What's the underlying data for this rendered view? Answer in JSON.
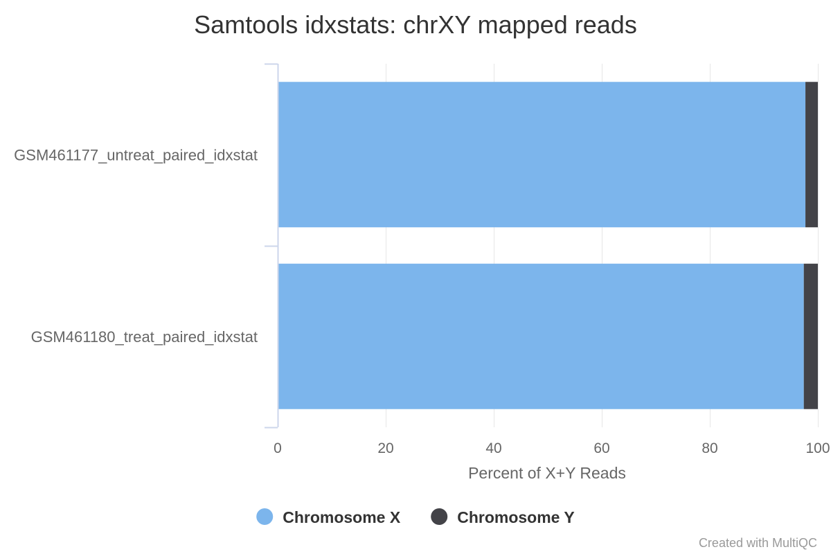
{
  "chart_data": {
    "type": "bar",
    "orientation": "horizontal",
    "stacked": true,
    "title": "Samtools idxstats: chrXY mapped reads",
    "xlabel": "Percent of X+Y Reads",
    "ylabel": "",
    "xlim": [
      0,
      100
    ],
    "x_ticks": [
      "0",
      "20",
      "40",
      "60",
      "80",
      "100"
    ],
    "grid": true,
    "legend_position": "bottom-center",
    "categories": [
      "GSM461177_untreat_paired_idxstat",
      "GSM461180_treat_paired_idxstat"
    ],
    "series": [
      {
        "name": "Chromosome X",
        "color": "#7cb5ec",
        "values": [
          97.7,
          97.4
        ]
      },
      {
        "name": "Chromosome Y",
        "color": "#434348",
        "values": [
          2.3,
          2.6
        ]
      }
    ]
  },
  "credit": "Created with MultiQC"
}
